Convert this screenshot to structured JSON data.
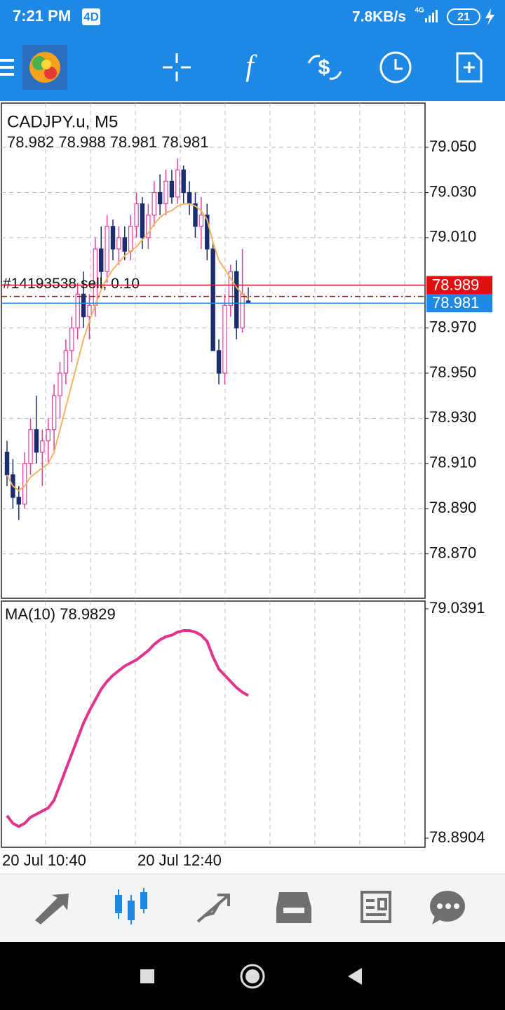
{
  "status_bar": {
    "time": "7:21 PM",
    "badge": "4D",
    "speed": "7.8KB/s",
    "network": "4G",
    "battery": "21"
  },
  "chart_data": [
    {
      "type": "candlestick",
      "title": "CADJPY.u, M5",
      "subtitle": "78.982 78.988 78.981 78.981",
      "categories": [
        "20 Jul 10:40",
        null,
        null,
        null,
        null,
        null,
        null,
        null,
        null,
        null,
        null,
        null,
        null,
        null,
        null,
        null,
        null,
        null,
        null,
        null,
        null,
        null,
        null,
        "20 Jul 12:40",
        null,
        null,
        null,
        null,
        null,
        null,
        null,
        null,
        null,
        null,
        null,
        null,
        null,
        null,
        null,
        null,
        null,
        null
      ],
      "open": [
        78.915,
        78.905,
        78.895,
        78.892,
        78.91,
        78.925,
        78.915,
        78.92,
        78.925,
        78.94,
        78.95,
        78.96,
        78.97,
        78.985,
        78.975,
        78.98,
        79.005,
        78.995,
        79.015,
        79.005,
        79.01,
        79.004,
        79.015,
        79.025,
        79.01,
        79.02,
        79.03,
        79.025,
        79.035,
        79.028,
        79.04,
        79.03,
        79.025,
        79.015,
        79.02,
        79.005,
        78.96,
        78.95,
        78.98,
        78.995,
        78.97,
        78.982
      ],
      "high": [
        78.92,
        78.912,
        78.9,
        78.915,
        78.93,
        78.94,
        78.925,
        78.93,
        78.945,
        78.955,
        78.965,
        78.975,
        78.99,
        78.995,
        78.985,
        79.01,
        79.015,
        79.02,
        79.018,
        79.015,
        79.015,
        79.02,
        79.03,
        79.028,
        79.025,
        79.035,
        79.038,
        79.04,
        79.04,
        79.045,
        79.042,
        79.035,
        79.03,
        79.028,
        79.025,
        79.008,
        78.965,
        78.985,
        78.998,
        79.0,
        79.005,
        78.988
      ],
      "low": [
        78.9,
        78.89,
        78.885,
        78.89,
        78.905,
        78.91,
        78.9,
        78.91,
        78.915,
        78.93,
        78.945,
        78.955,
        78.965,
        78.97,
        78.965,
        78.975,
        78.99,
        78.99,
        79.0,
        78.998,
        79.0,
        79.0,
        79.01,
        79.005,
        79.005,
        79.015,
        79.02,
        79.02,
        79.025,
        79.025,
        79.025,
        79.02,
        79.01,
        79.005,
        79.0,
        78.96,
        78.945,
        78.945,
        78.975,
        78.965,
        78.968,
        78.981
      ],
      "close": [
        78.905,
        78.895,
        78.892,
        78.91,
        78.925,
        78.915,
        78.92,
        78.925,
        78.94,
        78.95,
        78.96,
        78.97,
        78.985,
        78.975,
        78.98,
        79.005,
        78.995,
        79.015,
        79.005,
        79.01,
        79.004,
        79.015,
        79.025,
        79.01,
        79.02,
        79.03,
        79.025,
        79.035,
        79.028,
        79.04,
        79.03,
        79.025,
        79.015,
        79.02,
        79.005,
        78.96,
        78.95,
        78.98,
        78.995,
        78.97,
        78.985,
        78.981
      ],
      "up_color": "#e0409f",
      "down_color": "#1b2d6e",
      "series": [
        {
          "color": "#f2b464",
          "values": [
            78.905,
            78.9,
            78.898,
            78.9,
            78.904,
            78.906,
            78.908,
            78.91,
            78.915,
            78.925,
            78.935,
            78.945,
            78.955,
            78.965,
            78.973,
            78.98,
            78.987,
            78.992,
            78.996,
            78.999,
            79.002,
            79.004,
            79.006,
            79.009,
            79.012,
            79.016,
            79.019,
            79.021,
            79.022,
            79.024,
            79.025,
            79.025,
            79.024,
            79.022,
            79.018,
            79.008,
            79.0,
            78.996,
            78.992,
            78.988,
            78.985,
            78.9829
          ]
        }
      ],
      "ylim": [
        78.8503,
        79.0696
      ],
      "yticks": [
        {
          "value": 79.05,
          "label": "79.050"
        },
        {
          "value": 79.03,
          "label": "79.030"
        },
        {
          "value": 79.01,
          "label": "79.010"
        },
        {
          "value": 78.97,
          "label": "78.970"
        },
        {
          "value": 78.95,
          "label": "78.950"
        },
        {
          "value": 78.93,
          "label": "78.930"
        },
        {
          "value": 78.91,
          "label": "78.910"
        },
        {
          "value": 78.89,
          "label": "78.890"
        },
        {
          "value": 78.87,
          "label": "78.870"
        }
      ],
      "grid": true,
      "price_lines": [
        {
          "value": 78.989,
          "color": "#e01010"
        },
        {
          "value": 78.981,
          "color": "#1e88e5"
        }
      ],
      "order": {
        "label": "#14193538 sell, 0.10",
        "price": 78.984,
        "color": "#8b1a1a"
      }
    },
    {
      "type": "line",
      "title": "MA(10) 78.9829",
      "series": [
        {
          "color": "#e0338c",
          "values": [
            78.905,
            78.9,
            78.898,
            78.9,
            78.904,
            78.906,
            78.908,
            78.91,
            78.915,
            78.925,
            78.935,
            78.945,
            78.955,
            78.965,
            78.973,
            78.98,
            78.987,
            78.992,
            78.996,
            78.999,
            79.002,
            79.004,
            79.006,
            79.009,
            79.012,
            79.016,
            79.019,
            79.021,
            79.022,
            79.024,
            79.025,
            79.025,
            79.024,
            79.022,
            79.018,
            79.008,
            79.0,
            78.996,
            78.992,
            78.988,
            78.985,
            78.9829
          ]
        }
      ],
      "ylim": [
        78.8845,
        79.0441
      ],
      "yticks": [
        79.0391,
        78.8904
      ]
    }
  ]
}
